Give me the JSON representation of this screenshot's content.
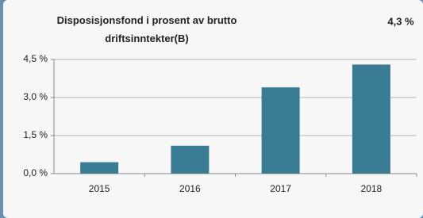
{
  "chart_data": {
    "type": "bar",
    "title": "Disposisjonsfond i prosent av brutto driftsinntekter(B)",
    "headline": "4,3 %",
    "categories": [
      "2015",
      "2016",
      "2017",
      "2018"
    ],
    "values": [
      0.45,
      1.1,
      3.4,
      4.3
    ],
    "color": "#397b93",
    "ylim": [
      0,
      4.5
    ],
    "yticks": [
      {
        "value": 0,
        "label": "0,0 %"
      },
      {
        "value": 1.5,
        "label": "1,5 %"
      },
      {
        "value": 3,
        "label": "3,0 %"
      },
      {
        "value": 4.5,
        "label": "4,5 %"
      }
    ],
    "grid": true
  }
}
